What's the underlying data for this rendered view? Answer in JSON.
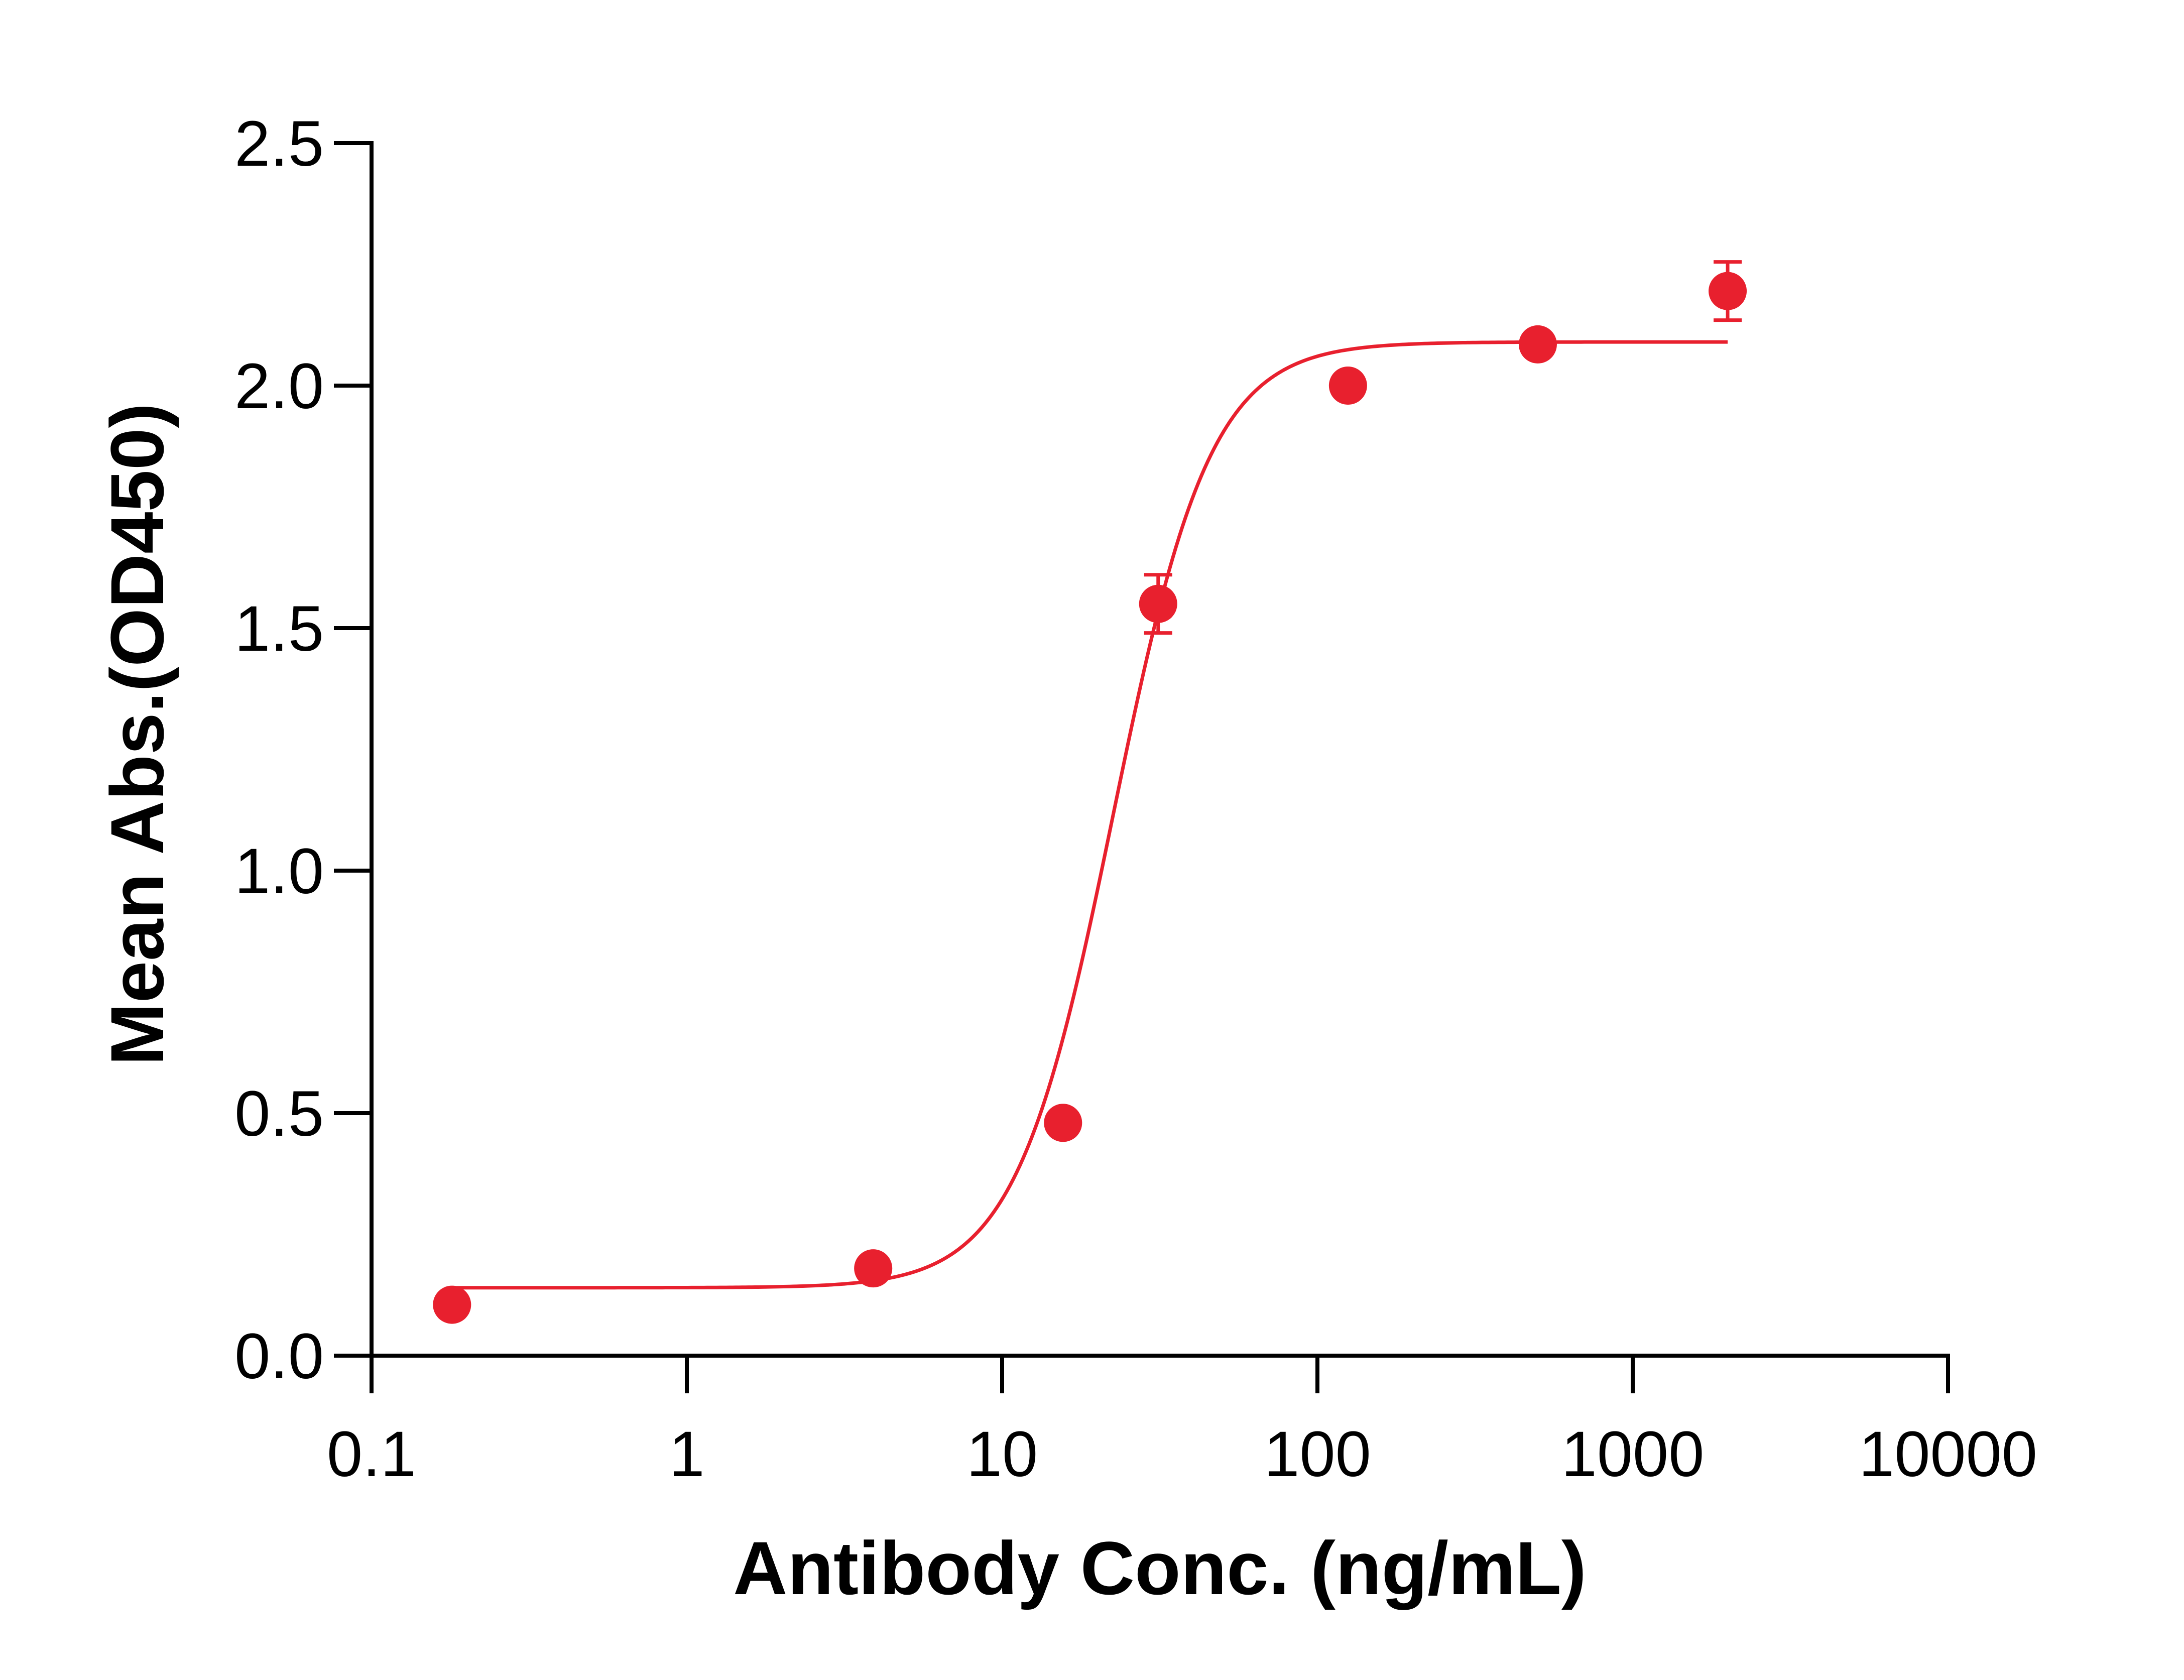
{
  "chart_data": {
    "type": "scatter",
    "title": "",
    "xlabel": "Antibody Conc. (ng/mL)",
    "ylabel": "Mean Abs.(OD450)",
    "x_scale": "log",
    "xlim": [
      0.1,
      10000
    ],
    "ylim": [
      0,
      2.5
    ],
    "x_ticks": [
      0.1,
      1,
      10,
      100,
      1000,
      10000
    ],
    "x_tick_labels": [
      "0.1",
      "1",
      "10",
      "100",
      "1000",
      "10000"
    ],
    "y_ticks": [
      0,
      0.5,
      1,
      1.5,
      2,
      2.5
    ],
    "y_tick_labels": [
      "0.0",
      "0.5",
      "1.0",
      "1.5",
      "2.0",
      "2.5"
    ],
    "grid": false,
    "legend": "none",
    "color": "#E8202E",
    "series": [
      {
        "points": [
          {
            "x": 0.18,
            "y": 0.105,
            "err": 0
          },
          {
            "x": 3.9,
            "y": 0.18,
            "err": 0
          },
          {
            "x": 15.6,
            "y": 0.48,
            "err": 0
          },
          {
            "x": 31.25,
            "y": 1.55,
            "err": 0.06
          },
          {
            "x": 125,
            "y": 2.0,
            "err": 0
          },
          {
            "x": 500,
            "y": 2.085,
            "err": 0
          },
          {
            "x": 2000,
            "y": 2.195,
            "err": 0.06
          }
        ],
        "fit": {
          "model": "4PL",
          "bottom": 0.14,
          "top": 2.09,
          "ec50": 22.5,
          "hill": 2.8,
          "x_range": [
            0.18,
            2000
          ]
        }
      }
    ]
  }
}
